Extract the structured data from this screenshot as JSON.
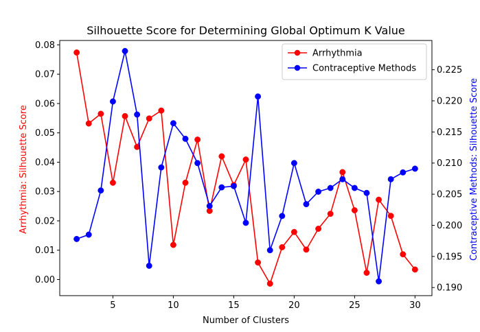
{
  "chart_data": {
    "type": "line",
    "title": "Silhouette Score for Determining Global Optimum K Value",
    "xlabel": "Number of Clusters",
    "ylabel_left": "Arrhythmia: Silhouette Score",
    "ylabel_right": "Contraceptive Methods: Silhouette Score",
    "xlim": [
      0.6,
      31.4
    ],
    "ylim_left": [
      -0.0055,
      0.0815
    ],
    "ylim_right": [
      0.1887,
      0.2297
    ],
    "x_ticks": [
      5,
      10,
      15,
      20,
      25,
      30
    ],
    "y_ticks_left": [
      0.0,
      0.01,
      0.02,
      0.03,
      0.04,
      0.05,
      0.06,
      0.07,
      0.08
    ],
    "y_ticks_right": [
      0.19,
      0.195,
      0.2,
      0.205,
      0.21,
      0.215,
      0.22,
      0.225
    ],
    "legend_position": "top-right",
    "grid": false,
    "x": [
      2,
      3,
      4,
      5,
      6,
      7,
      8,
      9,
      10,
      11,
      12,
      13,
      14,
      15,
      16,
      17,
      18,
      19,
      20,
      21,
      22,
      23,
      24,
      25,
      26,
      27,
      28,
      29,
      30
    ],
    "series": [
      {
        "name": "Arrhythmia",
        "axis": "left",
        "color": "#ff0000",
        "values": [
          0.0774,
          0.0532,
          0.0565,
          0.033,
          0.0557,
          0.0452,
          0.0549,
          0.0576,
          0.0118,
          0.033,
          0.0477,
          0.0234,
          0.042,
          0.0322,
          0.0409,
          0.0058,
          -0.0014,
          0.011,
          0.0162,
          0.0102,
          0.0173,
          0.0224,
          0.0366,
          0.0236,
          0.0023,
          0.0272,
          0.0217,
          0.0086,
          0.0034
        ]
      },
      {
        "name": "Contraceptive Methods",
        "axis": "right",
        "color": "#0000ff",
        "values": [
          0.1978,
          0.1985,
          0.2056,
          0.2199,
          0.228,
          0.2178,
          0.1935,
          0.2093,
          0.2164,
          0.2139,
          0.21,
          0.2031,
          0.2061,
          0.2063,
          0.2004,
          0.2207,
          0.196,
          0.2015,
          0.21,
          0.2034,
          0.2054,
          0.206,
          0.2074,
          0.206,
          0.2052,
          0.191,
          0.2074,
          0.2085,
          0.2091
        ]
      }
    ]
  }
}
